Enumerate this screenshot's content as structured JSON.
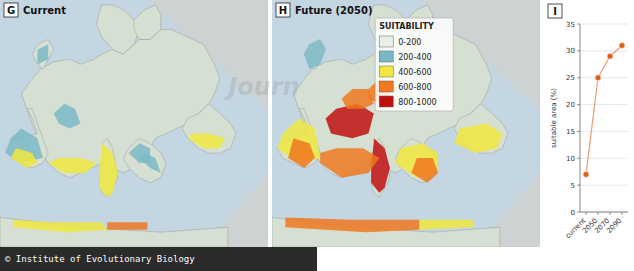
{
  "chart_data": [
    {
      "type": "map",
      "title": "Current",
      "annotations": [
        "G"
      ]
    },
    {
      "type": "map",
      "title": "Future (2050)",
      "annotations": [
        "H"
      ],
      "legend_title": "SUITABILITY",
      "categories": [
        "0-200",
        "200-400",
        "400-600",
        "600-800",
        "800-1000"
      ],
      "colors": [
        "#e8f0e8",
        "#7ab8c8",
        "#f0e840",
        "#f07820",
        "#c01010"
      ]
    },
    {
      "type": "line",
      "annotations": [
        "I"
      ],
      "categories": [
        "current",
        "2050",
        "2070",
        "2090"
      ],
      "values": [
        7,
        25,
        29,
        31
      ],
      "ylim": [
        0,
        35
      ],
      "yticks": [
        0,
        5,
        10,
        15,
        20,
        25,
        30,
        35
      ],
      "y_label": "suitable area (%)",
      "grid": true,
      "color": "#e05c1a",
      "marker": "circle"
    }
  ],
  "annotations": [
    "© Institute of Evolutionary Biology",
    "Journ"
  ]
}
